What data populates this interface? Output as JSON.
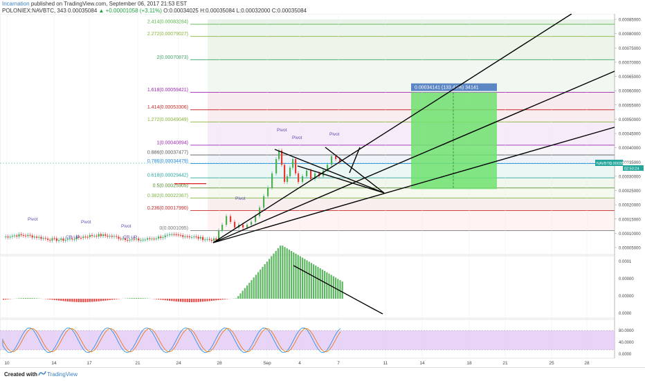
{
  "header": {
    "author": "Incarnation",
    "published": "published on TradingView.com, September 06, 2017 21:53 EST",
    "symbol": "POLONIEX:NAVBTC, 343",
    "price": "0.00035084",
    "change": "▲ +0.00001058 (+3.11%)",
    "ohlc": "O:0.00034025 H:0.00035084 L:0.00032000 C:0.00035084"
  },
  "fib_levels": [
    {
      "label": "2.414(0.00083284)",
      "value": 0.00083284,
      "color": "#55b347"
    },
    {
      "label": "2.272(0.00079027)",
      "value": 0.00079027,
      "color": "#8ab43c"
    },
    {
      "label": "2(0.00070873)",
      "value": 0.00070873,
      "color": "#3d9e63"
    },
    {
      "label": "1.618(0.00059421)",
      "value": 0.00059421,
      "color": "#9c27b0"
    },
    {
      "label": "1.414(0.00053306)",
      "value": 0.00053306,
      "color": "#c62828"
    },
    {
      "label": "1.272(0.00049049)",
      "value": 0.00049049,
      "color": "#8ab43c"
    },
    {
      "label": "1(0.00040894)",
      "value": 0.00040894,
      "color": "#9c27b0"
    },
    {
      "label": "0.886(0.00037477)",
      "value": 0.00037477,
      "color": "#555555"
    },
    {
      "label": "0.786(0.00034479)",
      "value": 0.00034479,
      "color": "#1e88e5"
    },
    {
      "label": "0.618(0.00029442)",
      "value": 0.00029442,
      "color": "#26a69a"
    },
    {
      "label": "0.5(0.00025905)",
      "value": 0.00025905,
      "color": "#558b2f"
    },
    {
      "label": "0.382(0.00022367)",
      "value": 0.00022367,
      "color": "#7cb342"
    },
    {
      "label": "0.236(0.00017990)",
      "value": 0.0001799,
      "color": "#c62828"
    },
    {
      "label": "0(0.0001095)",
      "value": 0.0001095,
      "color": "#757575"
    }
  ],
  "price_axis": [
    "0.00085000",
    "0.00080000",
    "0.00075000",
    "0.00070000",
    "0.00065000",
    "0.00060000",
    "0.00055000",
    "0.00050000",
    "0.00045000",
    "0.00040000",
    "0.00035000",
    "0.00030000",
    "0.00025000",
    "0.00020000",
    "0.00015000",
    "0.00010000",
    "0.00005000"
  ],
  "price_tag": {
    "symbol": "NAVBTC",
    "value": "0.00035084",
    "countdown": "02:50:24"
  },
  "target_label": "0.00034141 (133.43%) 34141",
  "annotations": [
    {
      "text": "Pivot"
    },
    {
      "text": "Pivot"
    },
    {
      "text": "Pivot"
    },
    {
      "text": "Pivot"
    },
    {
      "text": "Pivot"
    },
    {
      "text": "Pivot"
    },
    {
      "text": "Pivot"
    },
    {
      "text": "CR UP"
    },
    {
      "text": "CR UP"
    }
  ],
  "macd_axis": [
    "0.0001",
    "0.00000",
    "0.00000",
    "0.0000"
  ],
  "stoch_axis": [
    "80.0000",
    "40.0000",
    "0.0000"
  ],
  "time_axis": [
    "10",
    "14",
    "17",
    "21",
    "24",
    "28",
    "Sep",
    "4",
    "7",
    "11",
    "14",
    "18",
    "21",
    "25",
    "28"
  ],
  "footer": {
    "created": "Created with",
    "brand": "TradingView"
  },
  "colors": {
    "up": "#26a69a",
    "green_bar": "#4caf50",
    "red_bar": "#e53935",
    "target": "#6fe26f",
    "stoch_band": "#e1c9f5"
  }
}
